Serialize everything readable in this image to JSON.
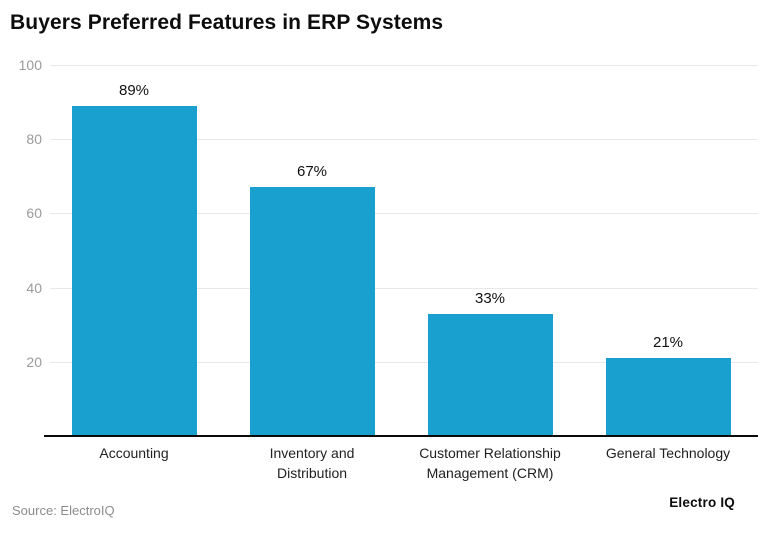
{
  "title": "Buyers Preferred Features in ERP Systems",
  "footer": {
    "source": "Source: ElectroIQ",
    "brand": "Electro IQ"
  },
  "colors": {
    "bar": "#1AA0CE",
    "grid": "#E8E8E8",
    "axis": "#0A0A0A",
    "tick_text": "#9B9B9B",
    "label_text": "#1F1F1F"
  },
  "chart_data": {
    "type": "bar",
    "title": "Buyers Preferred Features in ERP Systems",
    "categories": [
      "Accounting",
      "Inventory and Distribution",
      "Customer Relationship Management (CRM)",
      "General Technology"
    ],
    "values": [
      89,
      67,
      33,
      21
    ],
    "value_labels": [
      "89%",
      "67%",
      "33%",
      "21%"
    ],
    "xlabel": "",
    "ylabel": "",
    "ylim": [
      0,
      100
    ],
    "yticks": [
      20,
      40,
      60,
      80,
      100
    ],
    "grid": "horizontal",
    "legend": "none",
    "bar_color": "#1AA0CE"
  }
}
